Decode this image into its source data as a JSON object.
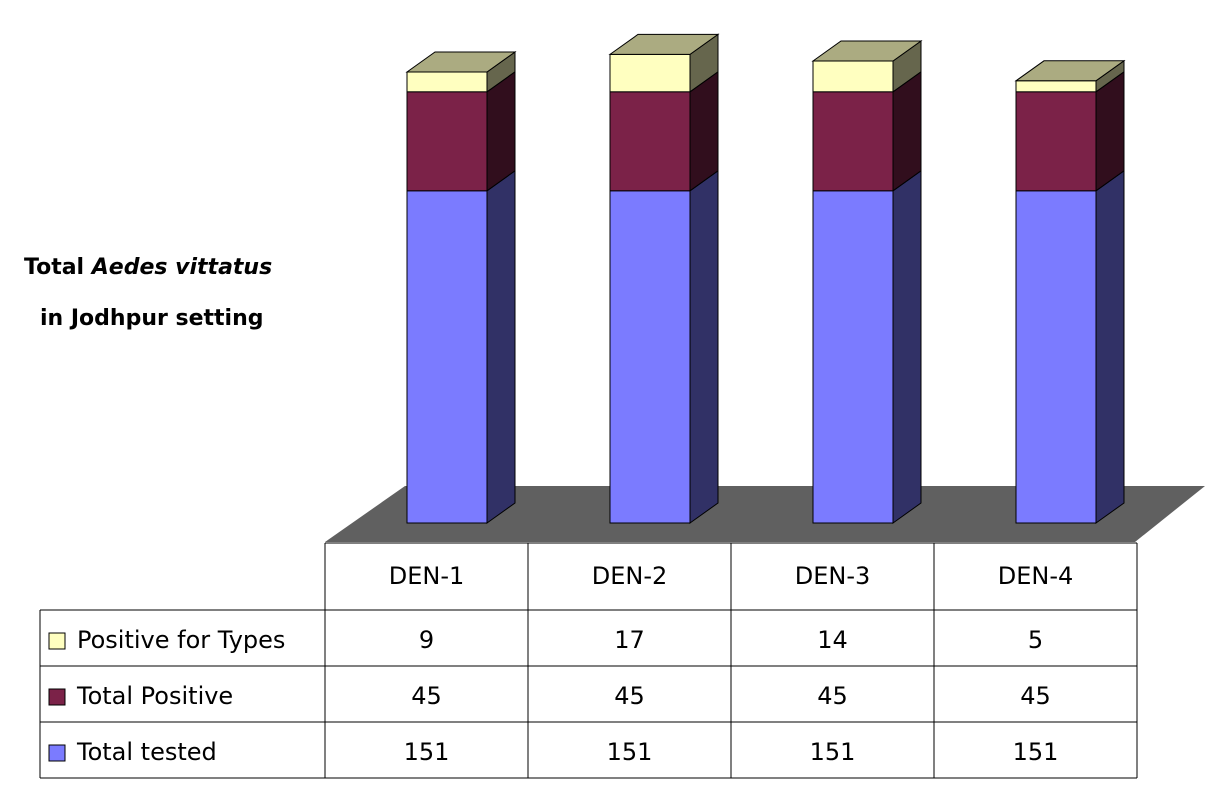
{
  "chart_data": {
    "type": "bar",
    "stacked": true,
    "view": "3d",
    "title": [
      "Total",
      "Aedes vittatus",
      "in Jodhpur setting"
    ],
    "categories": [
      "DEN-1",
      "DEN-2",
      "DEN-3",
      "DEN-4"
    ],
    "series": [
      {
        "name": "Total tested",
        "color": "#7b7bff",
        "values": [
          151,
          151,
          151,
          151
        ]
      },
      {
        "name": "Total Positive",
        "color": "#7b2248",
        "values": [
          45,
          45,
          45,
          45
        ]
      },
      {
        "name": "Positive for Types",
        "color": "#ffffc0",
        "values": [
          9,
          17,
          14,
          5
        ]
      }
    ]
  }
}
